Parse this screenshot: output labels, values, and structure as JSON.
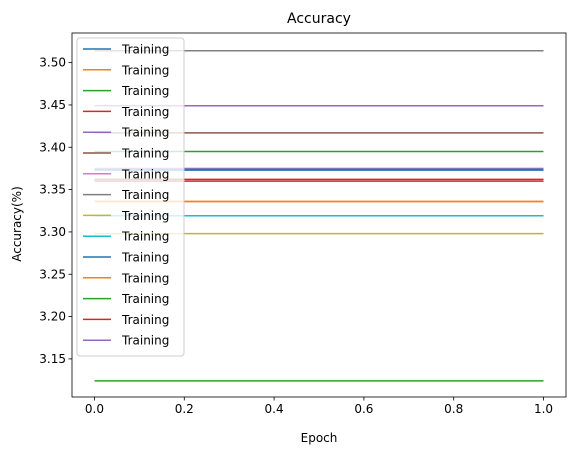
{
  "chart_data": {
    "type": "line",
    "title": "Accuracy",
    "xlabel": "Epoch",
    "ylabel": "Accuracy(%)",
    "xlim": [
      -0.05,
      1.05
    ],
    "ylim": [
      3.105,
      3.535
    ],
    "xticks": [
      0.0,
      0.2,
      0.4,
      0.6,
      0.8,
      1.0
    ],
    "xtick_labels": [
      "0.0",
      "0.2",
      "0.4",
      "0.6",
      "0.8",
      "1.0"
    ],
    "yticks": [
      3.15,
      3.2,
      3.25,
      3.3,
      3.35,
      3.4,
      3.45,
      3.5
    ],
    "ytick_labels": [
      "3.15",
      "3.20",
      "3.25",
      "3.30",
      "3.35",
      "3.40",
      "3.45",
      "3.50"
    ],
    "grid": false,
    "legend_position": "top-left",
    "x": [
      0,
      1
    ],
    "series": [
      {
        "name": "Training",
        "color": "#1f77b4",
        "values": [
          3.373,
          3.373
        ]
      },
      {
        "name": "Training",
        "color": "#ff7f0e",
        "values": [
          3.336,
          3.336
        ]
      },
      {
        "name": "Training",
        "color": "#2ca02c",
        "values": [
          3.395,
          3.395
        ]
      },
      {
        "name": "Training",
        "color": "#d62728",
        "values": [
          3.36,
          3.36
        ]
      },
      {
        "name": "Training",
        "color": "#9467bd",
        "values": [
          3.449,
          3.449
        ]
      },
      {
        "name": "Training",
        "color": "#8c564b",
        "values": [
          3.417,
          3.417
        ]
      },
      {
        "name": "Training",
        "color": "#e377c2",
        "values": [
          3.375,
          3.375
        ]
      },
      {
        "name": "Training",
        "color": "#7f7f7f",
        "values": [
          3.514,
          3.514
        ]
      },
      {
        "name": "Training",
        "color": "#bcbd22",
        "values": [
          3.298,
          3.298
        ]
      },
      {
        "name": "Training",
        "color": "#17becf",
        "values": [
          3.319,
          3.319
        ]
      },
      {
        "name": "Training",
        "color": "#1f77b4",
        "values": [
          3.374,
          3.374
        ]
      },
      {
        "name": "Training",
        "color": "#ff7f0e",
        "values": [
          3.336,
          3.336
        ]
      },
      {
        "name": "Training",
        "color": "#2ca02c",
        "values": [
          3.124,
          3.124
        ]
      },
      {
        "name": "Training",
        "color": "#d62728",
        "values": [
          3.362,
          3.362
        ]
      },
      {
        "name": "Training",
        "color": "#9467bd",
        "values": [
          3.449,
          3.449
        ]
      }
    ]
  }
}
